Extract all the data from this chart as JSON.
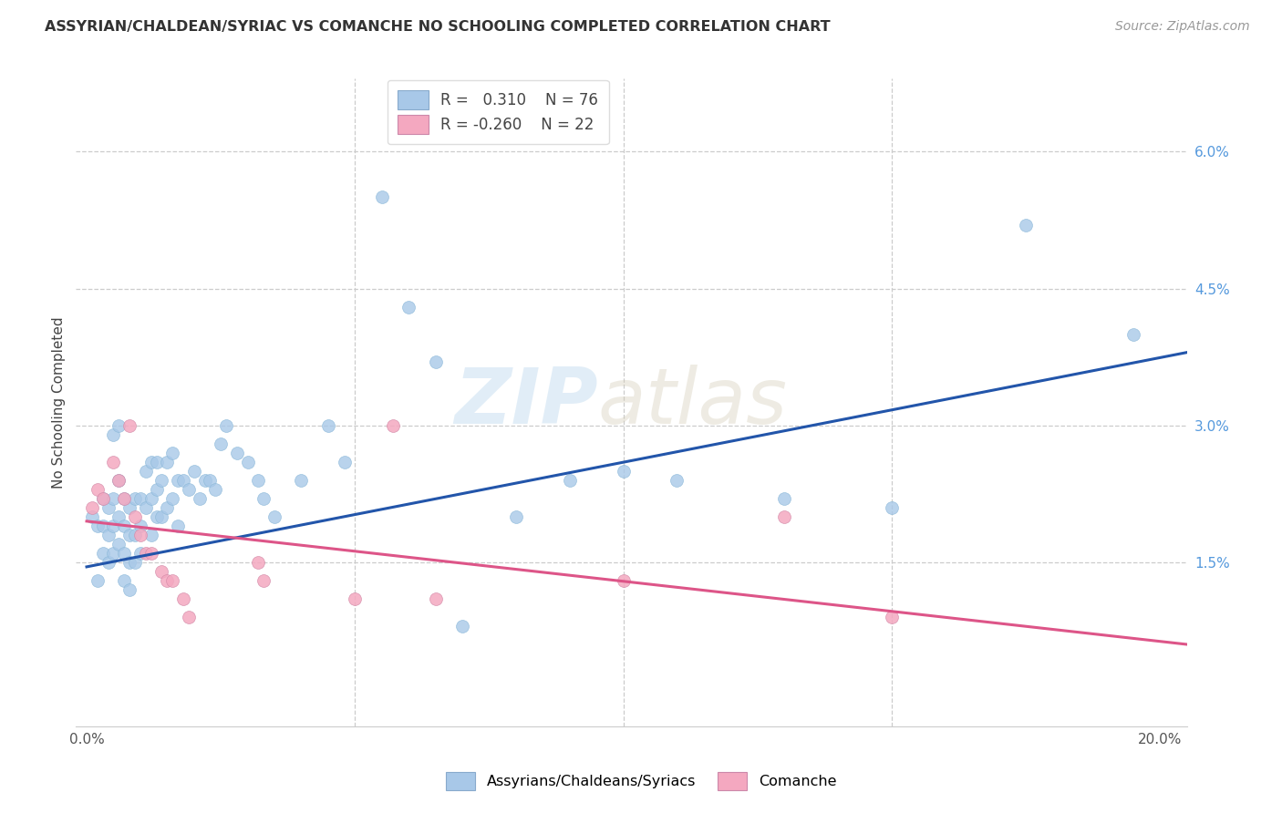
{
  "title": "ASSYRIAN/CHALDEAN/SYRIAC VS COMANCHE NO SCHOOLING COMPLETED CORRELATION CHART",
  "source": "Source: ZipAtlas.com",
  "ylabel": "No Schooling Completed",
  "xlim": [
    -0.002,
    0.205
  ],
  "ylim": [
    -0.003,
    0.068
  ],
  "blue_color": "#a8c8e8",
  "pink_color": "#f4a8c0",
  "line_blue": "#2255aa",
  "line_pink": "#dd5588",
  "legend_label1": "Assyrians/Chaldeans/Syriacs",
  "legend_label2": "Comanche",
  "blue_line_x0": 0.0,
  "blue_line_y0": 0.0145,
  "blue_line_x1": 0.205,
  "blue_line_y1": 0.038,
  "pink_line_x0": 0.0,
  "pink_line_y0": 0.0195,
  "pink_line_x1": 0.205,
  "pink_line_y1": 0.006,
  "blue_scatter_x": [
    0.001,
    0.002,
    0.002,
    0.003,
    0.003,
    0.003,
    0.004,
    0.004,
    0.004,
    0.005,
    0.005,
    0.005,
    0.005,
    0.006,
    0.006,
    0.006,
    0.006,
    0.007,
    0.007,
    0.007,
    0.007,
    0.008,
    0.008,
    0.008,
    0.008,
    0.009,
    0.009,
    0.009,
    0.01,
    0.01,
    0.01,
    0.011,
    0.011,
    0.012,
    0.012,
    0.012,
    0.013,
    0.013,
    0.013,
    0.014,
    0.014,
    0.015,
    0.015,
    0.016,
    0.016,
    0.017,
    0.017,
    0.018,
    0.019,
    0.02,
    0.021,
    0.022,
    0.023,
    0.024,
    0.025,
    0.026,
    0.028,
    0.03,
    0.032,
    0.033,
    0.035,
    0.04,
    0.045,
    0.048,
    0.055,
    0.06,
    0.065,
    0.07,
    0.08,
    0.09,
    0.1,
    0.11,
    0.13,
    0.15,
    0.175,
    0.195
  ],
  "blue_scatter_y": [
    0.02,
    0.013,
    0.019,
    0.022,
    0.019,
    0.016,
    0.021,
    0.018,
    0.015,
    0.029,
    0.022,
    0.019,
    0.016,
    0.03,
    0.024,
    0.02,
    0.017,
    0.022,
    0.019,
    0.016,
    0.013,
    0.021,
    0.018,
    0.015,
    0.012,
    0.022,
    0.018,
    0.015,
    0.022,
    0.019,
    0.016,
    0.025,
    0.021,
    0.026,
    0.022,
    0.018,
    0.026,
    0.023,
    0.02,
    0.024,
    0.02,
    0.026,
    0.021,
    0.027,
    0.022,
    0.024,
    0.019,
    0.024,
    0.023,
    0.025,
    0.022,
    0.024,
    0.024,
    0.023,
    0.028,
    0.03,
    0.027,
    0.026,
    0.024,
    0.022,
    0.02,
    0.024,
    0.03,
    0.026,
    0.055,
    0.043,
    0.037,
    0.008,
    0.02,
    0.024,
    0.025,
    0.024,
    0.022,
    0.021,
    0.052,
    0.04
  ],
  "pink_scatter_x": [
    0.001,
    0.002,
    0.003,
    0.005,
    0.006,
    0.007,
    0.008,
    0.009,
    0.01,
    0.011,
    0.012,
    0.014,
    0.015,
    0.016,
    0.018,
    0.019,
    0.032,
    0.033,
    0.05,
    0.057,
    0.065,
    0.1,
    0.13,
    0.15
  ],
  "pink_scatter_y": [
    0.021,
    0.023,
    0.022,
    0.026,
    0.024,
    0.022,
    0.03,
    0.02,
    0.018,
    0.016,
    0.016,
    0.014,
    0.013,
    0.013,
    0.011,
    0.009,
    0.015,
    0.013,
    0.011,
    0.03,
    0.011,
    0.013,
    0.02,
    0.009
  ]
}
